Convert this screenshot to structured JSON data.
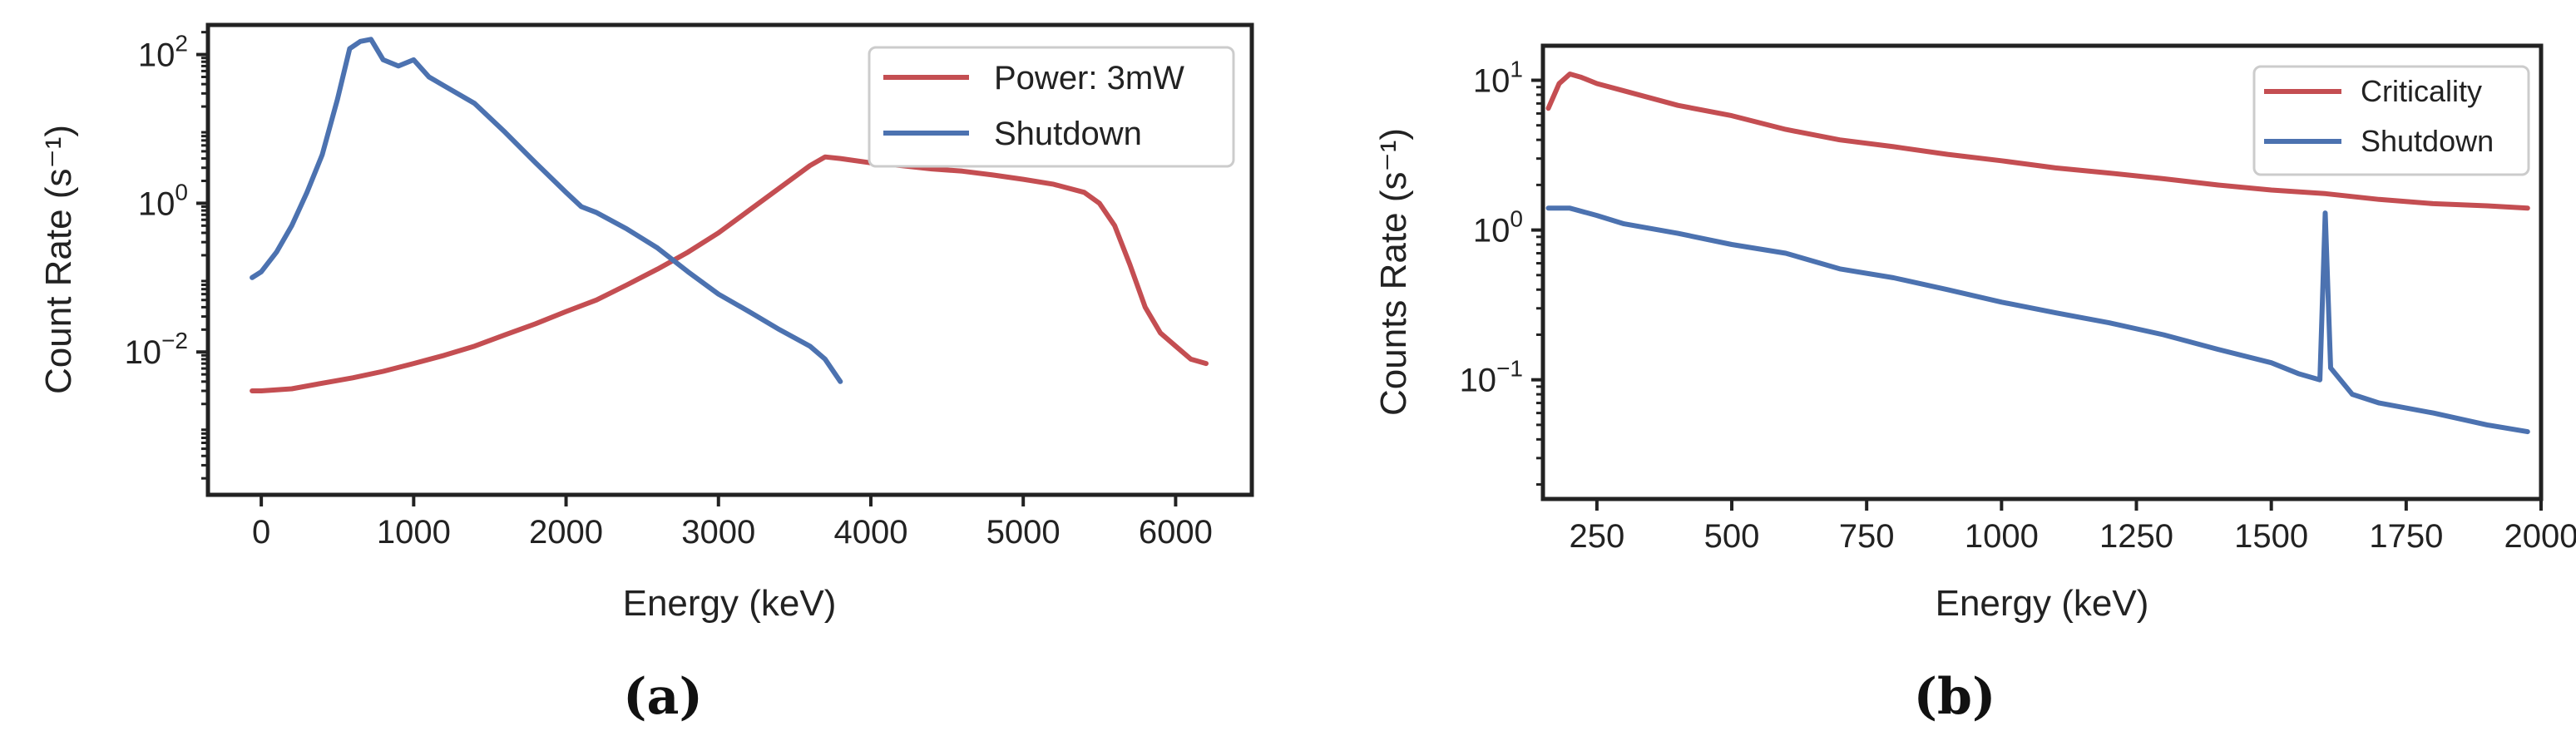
{
  "colors": {
    "red": "#C44E52",
    "blue": "#4C72B0",
    "axis": "#222222"
  },
  "chart_data": [
    {
      "type": "line",
      "panel_label": "a",
      "xlabel": "Energy (keV)",
      "ylabel": "Count Rate (s⁻¹)",
      "xlim": [
        -350,
        6500
      ],
      "ylim": [
        0.00012,
        250
      ],
      "yscale": "log",
      "xticks": [
        0,
        1000,
        2000,
        3000,
        4000,
        5000,
        6000
      ],
      "yticks": [
        {
          "value": 0.01,
          "base": "10",
          "exp": "−2"
        },
        {
          "value": 1,
          "base": "10",
          "exp": "0"
        },
        {
          "value": 100,
          "base": "10",
          "exp": "2"
        }
      ],
      "legend": {
        "placement": "top-right"
      },
      "series": [
        {
          "name": "Power: 3mW",
          "color": "#C44E52",
          "x": [
            -60,
            0,
            200,
            400,
            600,
            800,
            1000,
            1200,
            1400,
            1600,
            1800,
            2000,
            2200,
            2400,
            2600,
            2800,
            3000,
            3200,
            3400,
            3600,
            3700,
            3800,
            4000,
            4200,
            4400,
            4600,
            4800,
            5000,
            5200,
            5400,
            5500,
            5600,
            5700,
            5800,
            5900,
            6000,
            6100,
            6200
          ],
          "y": [
            0.003,
            0.003,
            0.0032,
            0.0038,
            0.0045,
            0.0055,
            0.007,
            0.009,
            0.012,
            0.017,
            0.024,
            0.035,
            0.05,
            0.08,
            0.13,
            0.22,
            0.4,
            0.8,
            1.6,
            3.2,
            4.2,
            4.0,
            3.5,
            3.2,
            2.9,
            2.7,
            2.4,
            2.1,
            1.8,
            1.4,
            1.0,
            0.5,
            0.15,
            0.04,
            0.018,
            0.012,
            0.008,
            0.007
          ]
        },
        {
          "name": "Shutdown",
          "color": "#4C72B0",
          "x": [
            -60,
            0,
            100,
            200,
            300,
            400,
            500,
            580,
            650,
            720,
            800,
            900,
            1000,
            1100,
            1200,
            1400,
            1600,
            1800,
            2000,
            2100,
            2200,
            2400,
            2600,
            2800,
            3000,
            3200,
            3400,
            3600,
            3700,
            3800
          ],
          "y": [
            0.1,
            0.12,
            0.22,
            0.5,
            1.4,
            4.5,
            25,
            120,
            150,
            160,
            85,
            70,
            85,
            50,
            38,
            22,
            9,
            3.5,
            1.4,
            0.9,
            0.75,
            0.45,
            0.25,
            0.12,
            0.06,
            0.035,
            0.02,
            0.012,
            0.008,
            0.004
          ]
        }
      ]
    },
    {
      "type": "line",
      "panel_label": "b",
      "xlabel": "Energy (keV)",
      "ylabel": "Counts Rate (s⁻¹)",
      "xlim": [
        150,
        2000
      ],
      "ylim": [
        0.016,
        17
      ],
      "yscale": "log",
      "xticks": [
        250,
        500,
        750,
        1000,
        1250,
        1500,
        1750,
        2000
      ],
      "yticks": [
        {
          "value": 0.1,
          "base": "10",
          "exp": "−1"
        },
        {
          "value": 1,
          "base": "10",
          "exp": "0"
        },
        {
          "value": 10,
          "base": "10",
          "exp": "1"
        }
      ],
      "legend": {
        "placement": "top-right"
      },
      "series": [
        {
          "name": "Criticality",
          "color": "#C44E52",
          "x": [
            160,
            180,
            200,
            220,
            250,
            300,
            400,
            500,
            600,
            700,
            800,
            900,
            1000,
            1100,
            1200,
            1300,
            1400,
            1500,
            1600,
            1700,
            1800,
            1900,
            1975
          ],
          "y": [
            6.5,
            9.5,
            11,
            10.5,
            9.5,
            8.5,
            6.8,
            5.8,
            4.7,
            4.0,
            3.6,
            3.2,
            2.9,
            2.6,
            2.4,
            2.2,
            2.0,
            1.85,
            1.75,
            1.6,
            1.5,
            1.45,
            1.4
          ]
        },
        {
          "name": "Shutdown",
          "color": "#4C72B0",
          "x": [
            160,
            200,
            250,
            300,
            400,
            500,
            600,
            700,
            800,
            900,
            1000,
            1100,
            1200,
            1300,
            1400,
            1500,
            1550,
            1590,
            1600,
            1610,
            1650,
            1700,
            1800,
            1900,
            1975
          ],
          "y": [
            1.4,
            1.4,
            1.25,
            1.1,
            0.95,
            0.8,
            0.7,
            0.55,
            0.48,
            0.4,
            0.33,
            0.28,
            0.24,
            0.2,
            0.16,
            0.13,
            0.11,
            0.1,
            1.3,
            0.12,
            0.08,
            0.07,
            0.06,
            0.05,
            0.045
          ]
        }
      ]
    }
  ]
}
